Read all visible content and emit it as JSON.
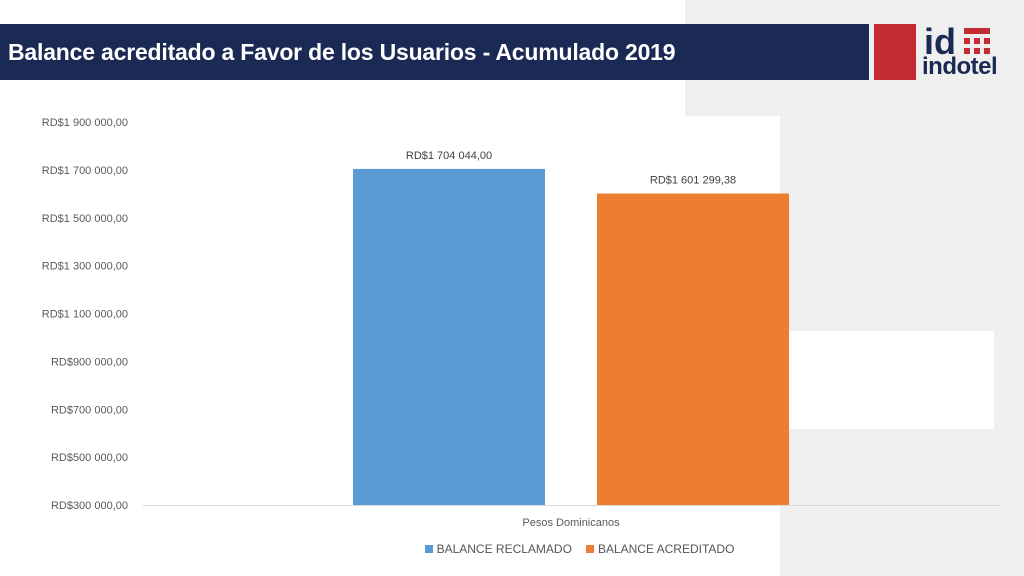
{
  "header": {
    "title": "Balance acreditado a Favor de los Usuarios - Acumulado 2019"
  },
  "logo": {
    "mark": "id",
    "word": "indotel"
  },
  "colors": {
    "header_bg": "#1b2a55",
    "logo_red": "#c42b32",
    "series_reclamado": "#5b9bd5",
    "series_acreditado": "#ed7d31"
  },
  "chart_data": {
    "type": "bar",
    "categories": [
      "Pesos Dominicanos"
    ],
    "series": [
      {
        "name": "BALANCE RECLAMADO",
        "values": [
          1704044.0
        ],
        "label": "RD$1 704 044,00",
        "color": "#5b9bd5"
      },
      {
        "name": "BALANCE ACREDITADO",
        "values": [
          1601299.38
        ],
        "label": "RD$1 601 299,38",
        "color": "#ed7d31"
      }
    ],
    "ylim": [
      300000,
      1900000
    ],
    "yticks": [
      300000,
      500000,
      700000,
      900000,
      1100000,
      1300000,
      1500000,
      1700000,
      1900000
    ],
    "ytick_labels": [
      "RD$300 000,00",
      "RD$500 000,00",
      "RD$700 000,00",
      "RD$900 000,00",
      "RD$1 100 000,00",
      "RD$1 300 000,00",
      "RD$1 500 000,00",
      "RD$1 700 000,00",
      "RD$1 900 000,00"
    ],
    "xlabel": "",
    "ylabel": "",
    "grid": false,
    "legend_position": "bottom"
  }
}
